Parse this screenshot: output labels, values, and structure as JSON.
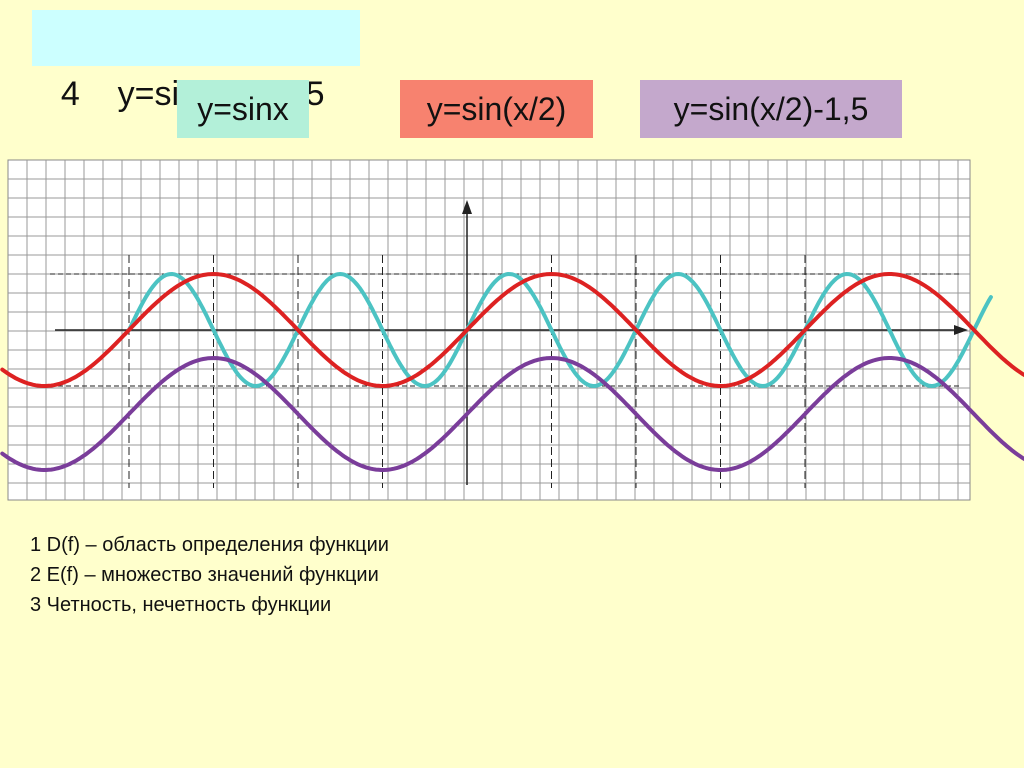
{
  "slide": {
    "number": "4",
    "formula": "y=sin(x/2)-1,5",
    "title_color": "#ccffff"
  },
  "legend": [
    {
      "label": "y=sinx",
      "color": "#b3f0d9"
    },
    {
      "label": "y=sin(x/2)",
      "color": "#f7826f"
    },
    {
      "label": "y=sin(x/2)-1,5",
      "color": "#c4a8cc"
    }
  ],
  "notes": [
    "1 D(f) – область определения функции",
    "2 E(f) – множество значений функции",
    "3 Четность, нечетность функции"
  ],
  "chart_data": {
    "type": "line",
    "title": "y=sin(x/2)-1,5",
    "xlabel": "",
    "ylabel": "",
    "x_range_pi": [
      -5.5,
      6
    ],
    "ylim": [
      -4,
      3
    ],
    "grid": true,
    "marked_x_pi": [
      -4,
      -3,
      -2,
      -1,
      1,
      2,
      3,
      4
    ],
    "series": [
      {
        "name": "y=sinx",
        "color": "#4cc3c3",
        "function": "sin(x)",
        "x_domain_pi": [
          -4,
          6.2
        ]
      },
      {
        "name": "y=sin(x/2)",
        "color": "#dd2222",
        "function": "sin(x/2)",
        "x_domain_pi": [
          -5.5,
          6.7
        ]
      },
      {
        "name": "y=sin(x/2)-1,5",
        "color": "#7a3d9a",
        "function": "sin(x/2)-1.5",
        "x_domain_pi": [
          -5.5,
          6.7
        ]
      }
    ]
  }
}
